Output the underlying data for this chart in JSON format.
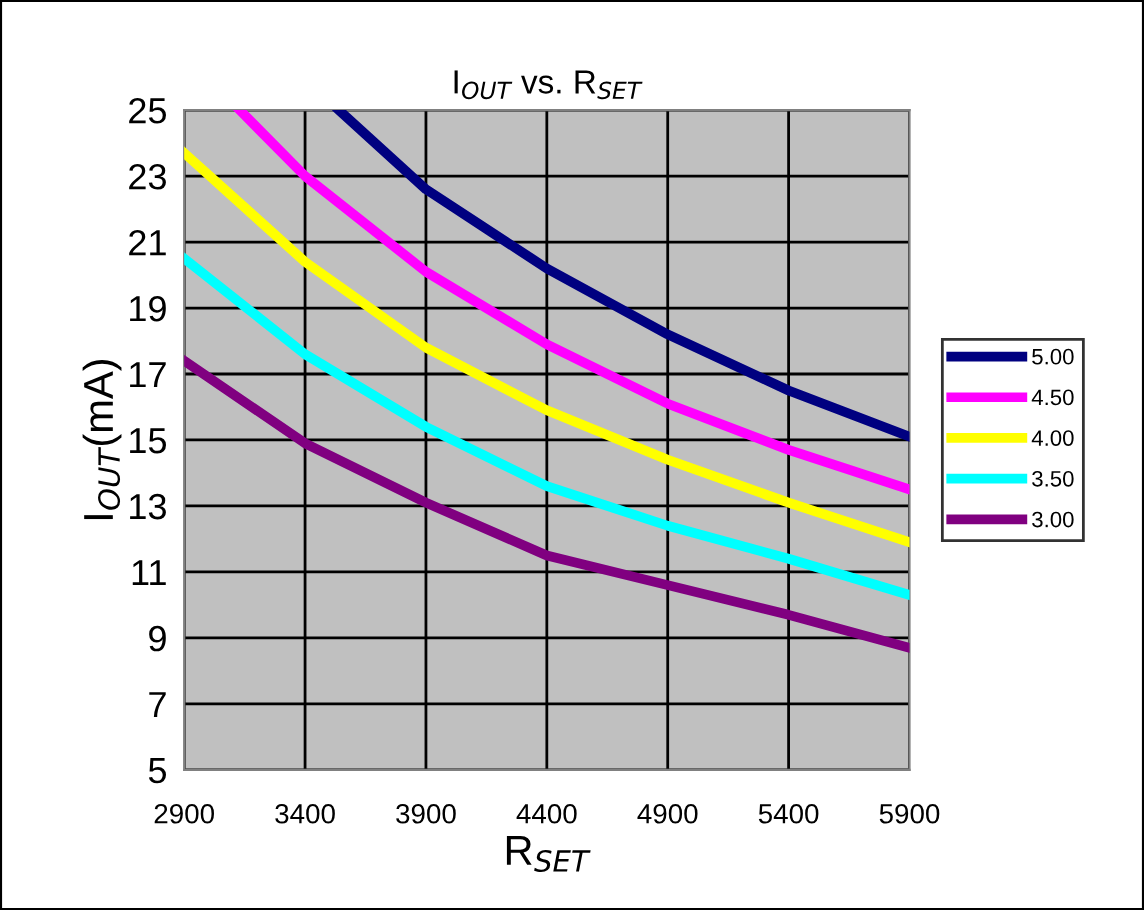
{
  "chart_data": {
    "type": "line",
    "title": "I$_{OUT}$ vs. R$_{SET}$",
    "xlabel": "R$_{SET}$",
    "ylabel": "I$_{OUT}$(mA)",
    "xlim": [
      2900,
      5900
    ],
    "xticks": [
      2900,
      3400,
      3900,
      4400,
      4900,
      5400,
      5900
    ],
    "ylim": [
      5,
      25
    ],
    "yticks": [
      5,
      7,
      9,
      11,
      13,
      15,
      17,
      19,
      21,
      23,
      25
    ],
    "grid": true,
    "legend": "right",
    "marker": "none",
    "line_style": "solid",
    "series": [
      {
        "name": "5.00",
        "color": "#000080",
        "x": [
          3540,
          3900,
          4400,
          4900,
          5400,
          5900
        ],
        "values": [
          25,
          22.6,
          20.2,
          18.2,
          16.5,
          15.1
        ]
      },
      {
        "name": "4.50",
        "color": "#ff00ff",
        "x": [
          3130,
          3400,
          3900,
          4400,
          4900,
          5400,
          5900
        ],
        "values": [
          25,
          23.0,
          20.1,
          17.9,
          16.1,
          14.7,
          13.5
        ]
      },
      {
        "name": "4.00",
        "color": "#ffff00",
        "x": [
          2900,
          3400,
          3900,
          4400,
          4900,
          5400,
          5900
        ],
        "values": [
          23.7,
          20.4,
          17.8,
          15.9,
          14.4,
          13.1,
          11.9
        ]
      },
      {
        "name": "3.50",
        "color": "#00ffff",
        "x": [
          2900,
          3400,
          3900,
          4400,
          4900,
          5400,
          5900
        ],
        "values": [
          20.5,
          17.6,
          15.4,
          13.6,
          12.4,
          11.4,
          10.3
        ]
      },
      {
        "name": "3.00",
        "color": "#800080",
        "x": [
          2900,
          3400,
          3900,
          4400,
          4900,
          5400,
          5900
        ],
        "values": [
          17.4,
          14.9,
          13.1,
          11.5,
          10.6,
          9.7,
          8.7
        ]
      }
    ]
  }
}
